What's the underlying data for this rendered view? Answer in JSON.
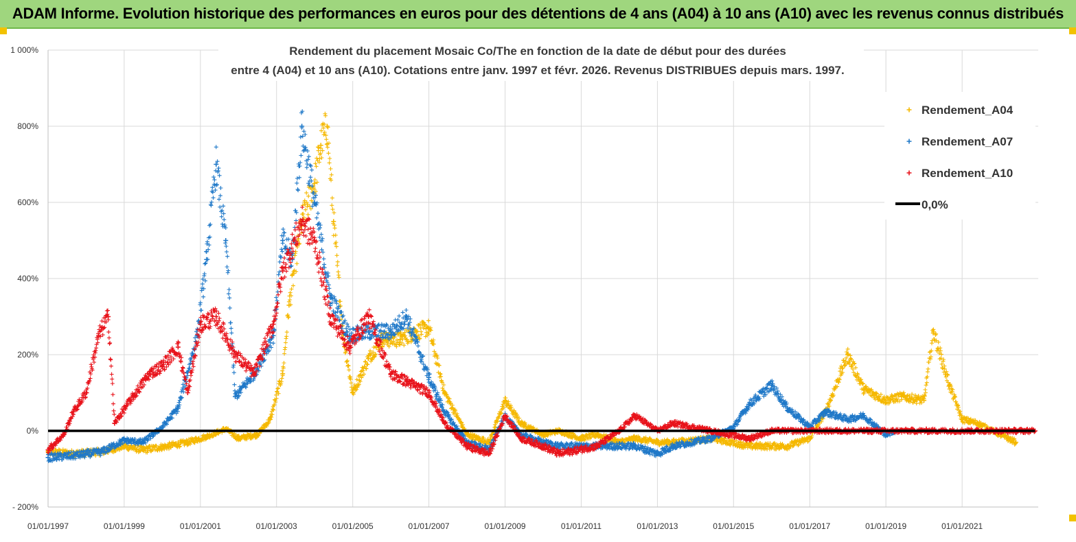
{
  "header": {
    "banner_title": "ADAM Informe. Evolution historique des performances en euros pour des détentions de 4 ans (A04) à 10 ans (A10) avec les revenus connus distribués"
  },
  "colors": {
    "banner_bg": "#9fd67e",
    "corner_accent": "#f2c200",
    "gridline": "#d9d9d9",
    "zero_line": "#000000"
  },
  "chart_data": {
    "type": "scatter",
    "title_lines": [
      "Rendement du placement Mosaic Co/The en  fonction de  la date de début pour des durées",
      "entre 4  (A04) et 10 ans (A10).  Cotations entre janv. 1997 et févr. 2026. Revenus  DISTRIBUES depuis mars. 1997."
    ],
    "xlabel": "",
    "ylabel": "",
    "xlim": [
      "1997-01-01",
      "2023-01-01"
    ],
    "ylim": [
      -200,
      1000
    ],
    "y_ticks": [
      -200,
      0,
      200,
      400,
      600,
      800,
      1000
    ],
    "y_tick_labels": [
      "- 200%",
      "0%",
      "200%",
      "400%",
      "600%",
      "800%",
      "1 000%"
    ],
    "x_ticks": [
      "1997-01-01",
      "1999-01-01",
      "2001-01-01",
      "2003-01-01",
      "2005-01-01",
      "2007-01-01",
      "2009-01-01",
      "2011-01-01",
      "2013-01-01",
      "2015-01-01",
      "2017-01-01",
      "2019-01-01",
      "2021-01-01"
    ],
    "x_tick_labels": [
      "01/01/1997",
      "01/01/1999",
      "01/01/2001",
      "01/01/2003",
      "01/01/2005",
      "01/01/2007",
      "01/01/2009",
      "01/01/2011",
      "01/01/2013",
      "01/01/2015",
      "01/01/2017",
      "01/01/2019",
      "01/01/2021"
    ],
    "grid": true,
    "legend_position": "top-right",
    "series": [
      {
        "name": "Rendement_A04",
        "color": "#f5b800",
        "marker": "plus",
        "points": [
          [
            "1997-01-01",
            -55
          ],
          [
            "1997-09-01",
            -60
          ],
          [
            "1998-06-01",
            -55
          ],
          [
            "1999-01-01",
            -40
          ],
          [
            "1999-07-01",
            -50
          ],
          [
            "2000-03-01",
            -40
          ],
          [
            "2000-09-01",
            -30
          ],
          [
            "2001-03-01",
            -15
          ],
          [
            "2001-09-01",
            5
          ],
          [
            "2002-01-01",
            -20
          ],
          [
            "2002-07-01",
            -10
          ],
          [
            "2002-11-01",
            30
          ],
          [
            "2003-03-01",
            150
          ],
          [
            "2003-05-01",
            330
          ],
          [
            "2003-09-01",
            550
          ],
          [
            "2004-01-01",
            650
          ],
          [
            "2004-03-01",
            750
          ],
          [
            "2004-05-01",
            800
          ],
          [
            "2004-07-01",
            550
          ],
          [
            "2004-10-01",
            250
          ],
          [
            "2005-01-01",
            100
          ],
          [
            "2005-06-01",
            190
          ],
          [
            "2005-10-01",
            240
          ],
          [
            "2006-04-01",
            240
          ],
          [
            "2006-09-01",
            260
          ],
          [
            "2007-01-01",
            270
          ],
          [
            "2007-06-01",
            100
          ],
          [
            "2008-01-01",
            -10
          ],
          [
            "2008-08-01",
            -30
          ],
          [
            "2009-01-01",
            80
          ],
          [
            "2009-06-01",
            20
          ],
          [
            "2010-01-01",
            -10
          ],
          [
            "2010-06-01",
            0
          ],
          [
            "2011-01-01",
            -20
          ],
          [
            "2011-06-01",
            -10
          ],
          [
            "2012-01-01",
            -30
          ],
          [
            "2012-06-01",
            -20
          ],
          [
            "2013-01-01",
            -30
          ],
          [
            "2013-06-01",
            -30
          ],
          [
            "2014-06-01",
            -20
          ],
          [
            "2015-06-01",
            -40
          ],
          [
            "2016-06-01",
            -40
          ],
          [
            "2017-01-01",
            -20
          ],
          [
            "2017-06-01",
            50
          ],
          [
            "2018-01-01",
            200
          ],
          [
            "2018-06-01",
            110
          ],
          [
            "2019-01-01",
            80
          ],
          [
            "2019-06-01",
            90
          ],
          [
            "2020-01-01",
            80
          ],
          [
            "2020-04-01",
            260
          ],
          [
            "2020-09-01",
            120
          ],
          [
            "2021-01-01",
            30
          ],
          [
            "2021-06-01",
            20
          ],
          [
            "2022-01-01",
            -10
          ],
          [
            "2022-06-01",
            -30
          ]
        ]
      },
      {
        "name": "Rendement_A07",
        "color": "#1f78c8",
        "marker": "plus",
        "points": [
          [
            "1997-01-01",
            -70
          ],
          [
            "1997-09-01",
            -65
          ],
          [
            "1998-06-01",
            -55
          ],
          [
            "1999-01-01",
            -25
          ],
          [
            "1999-07-01",
            -30
          ],
          [
            "2000-01-01",
            10
          ],
          [
            "2000-06-01",
            60
          ],
          [
            "2000-12-01",
            250
          ],
          [
            "2001-03-01",
            450
          ],
          [
            "2001-06-01",
            700
          ],
          [
            "2001-09-01",
            500
          ],
          [
            "2001-12-01",
            90
          ],
          [
            "2002-06-01",
            150
          ],
          [
            "2002-12-01",
            250
          ],
          [
            "2003-03-01",
            500
          ],
          [
            "2003-06-01",
            450
          ],
          [
            "2003-09-01",
            800
          ],
          [
            "2004-01-01",
            600
          ],
          [
            "2004-06-01",
            350
          ],
          [
            "2004-12-01",
            250
          ],
          [
            "2005-06-01",
            260
          ],
          [
            "2006-01-01",
            260
          ],
          [
            "2006-06-01",
            300
          ],
          [
            "2007-01-01",
            140
          ],
          [
            "2007-06-01",
            50
          ],
          [
            "2008-01-01",
            -30
          ],
          [
            "2008-08-01",
            -50
          ],
          [
            "2009-01-01",
            40
          ],
          [
            "2009-06-01",
            -10
          ],
          [
            "2010-01-01",
            -30
          ],
          [
            "2010-06-01",
            -40
          ],
          [
            "2011-06-01",
            -40
          ],
          [
            "2012-06-01",
            -40
          ],
          [
            "2013-01-01",
            -60
          ],
          [
            "2013-06-01",
            -40
          ],
          [
            "2014-06-01",
            -20
          ],
          [
            "2015-01-01",
            10
          ],
          [
            "2015-06-01",
            70
          ],
          [
            "2016-01-01",
            120
          ],
          [
            "2016-06-01",
            60
          ],
          [
            "2017-01-01",
            10
          ],
          [
            "2017-06-01",
            50
          ],
          [
            "2018-01-01",
            30
          ],
          [
            "2018-06-01",
            40
          ],
          [
            "2019-01-01",
            -10
          ],
          [
            "2019-04-01",
            0
          ]
        ]
      },
      {
        "name": "Rendement_A10",
        "color": "#e8121a",
        "marker": "plus",
        "points": [
          [
            "1997-01-01",
            -50
          ],
          [
            "1997-06-01",
            -10
          ],
          [
            "1997-09-01",
            50
          ],
          [
            "1998-01-01",
            100
          ],
          [
            "1998-05-01",
            250
          ],
          [
            "1998-08-01",
            300
          ],
          [
            "1998-10-01",
            20
          ],
          [
            "1999-03-01",
            80
          ],
          [
            "1999-09-01",
            150
          ],
          [
            "2000-01-01",
            170
          ],
          [
            "2000-06-01",
            220
          ],
          [
            "2000-09-01",
            100
          ],
          [
            "2001-01-01",
            280
          ],
          [
            "2001-06-01",
            300
          ],
          [
            "2001-12-01",
            200
          ],
          [
            "2002-06-01",
            150
          ],
          [
            "2002-12-01",
            280
          ],
          [
            "2003-03-01",
            420
          ],
          [
            "2003-09-01",
            550
          ],
          [
            "2004-01-01",
            500
          ],
          [
            "2004-06-01",
            300
          ],
          [
            "2004-12-01",
            220
          ],
          [
            "2005-06-01",
            300
          ],
          [
            "2006-01-01",
            150
          ],
          [
            "2006-06-01",
            130
          ],
          [
            "2007-01-01",
            100
          ],
          [
            "2007-06-01",
            20
          ],
          [
            "2008-01-01",
            -40
          ],
          [
            "2008-08-01",
            -60
          ],
          [
            "2009-01-01",
            40
          ],
          [
            "2009-06-01",
            -20
          ],
          [
            "2010-01-01",
            -40
          ],
          [
            "2010-06-01",
            -60
          ],
          [
            "2011-06-01",
            -40
          ],
          [
            "2012-01-01",
            0
          ],
          [
            "2012-06-01",
            40
          ],
          [
            "2013-01-01",
            0
          ],
          [
            "2013-06-01",
            20
          ],
          [
            "2014-06-01",
            0
          ],
          [
            "2015-06-01",
            -20
          ],
          [
            "2016-01-01",
            0
          ],
          [
            "2016-06-01",
            0
          ],
          [
            "2017-06-01",
            0
          ],
          [
            "2018-06-01",
            0
          ],
          [
            "2019-06-01",
            0
          ],
          [
            "2020-06-01",
            0
          ],
          [
            "2021-06-01",
            0
          ],
          [
            "2022-12-01",
            0
          ]
        ]
      },
      {
        "name": "0,0%",
        "color": "#000000",
        "marker": "line",
        "points": [
          [
            "1997-01-01",
            0
          ],
          [
            "2022-12-01",
            0
          ]
        ]
      }
    ]
  }
}
